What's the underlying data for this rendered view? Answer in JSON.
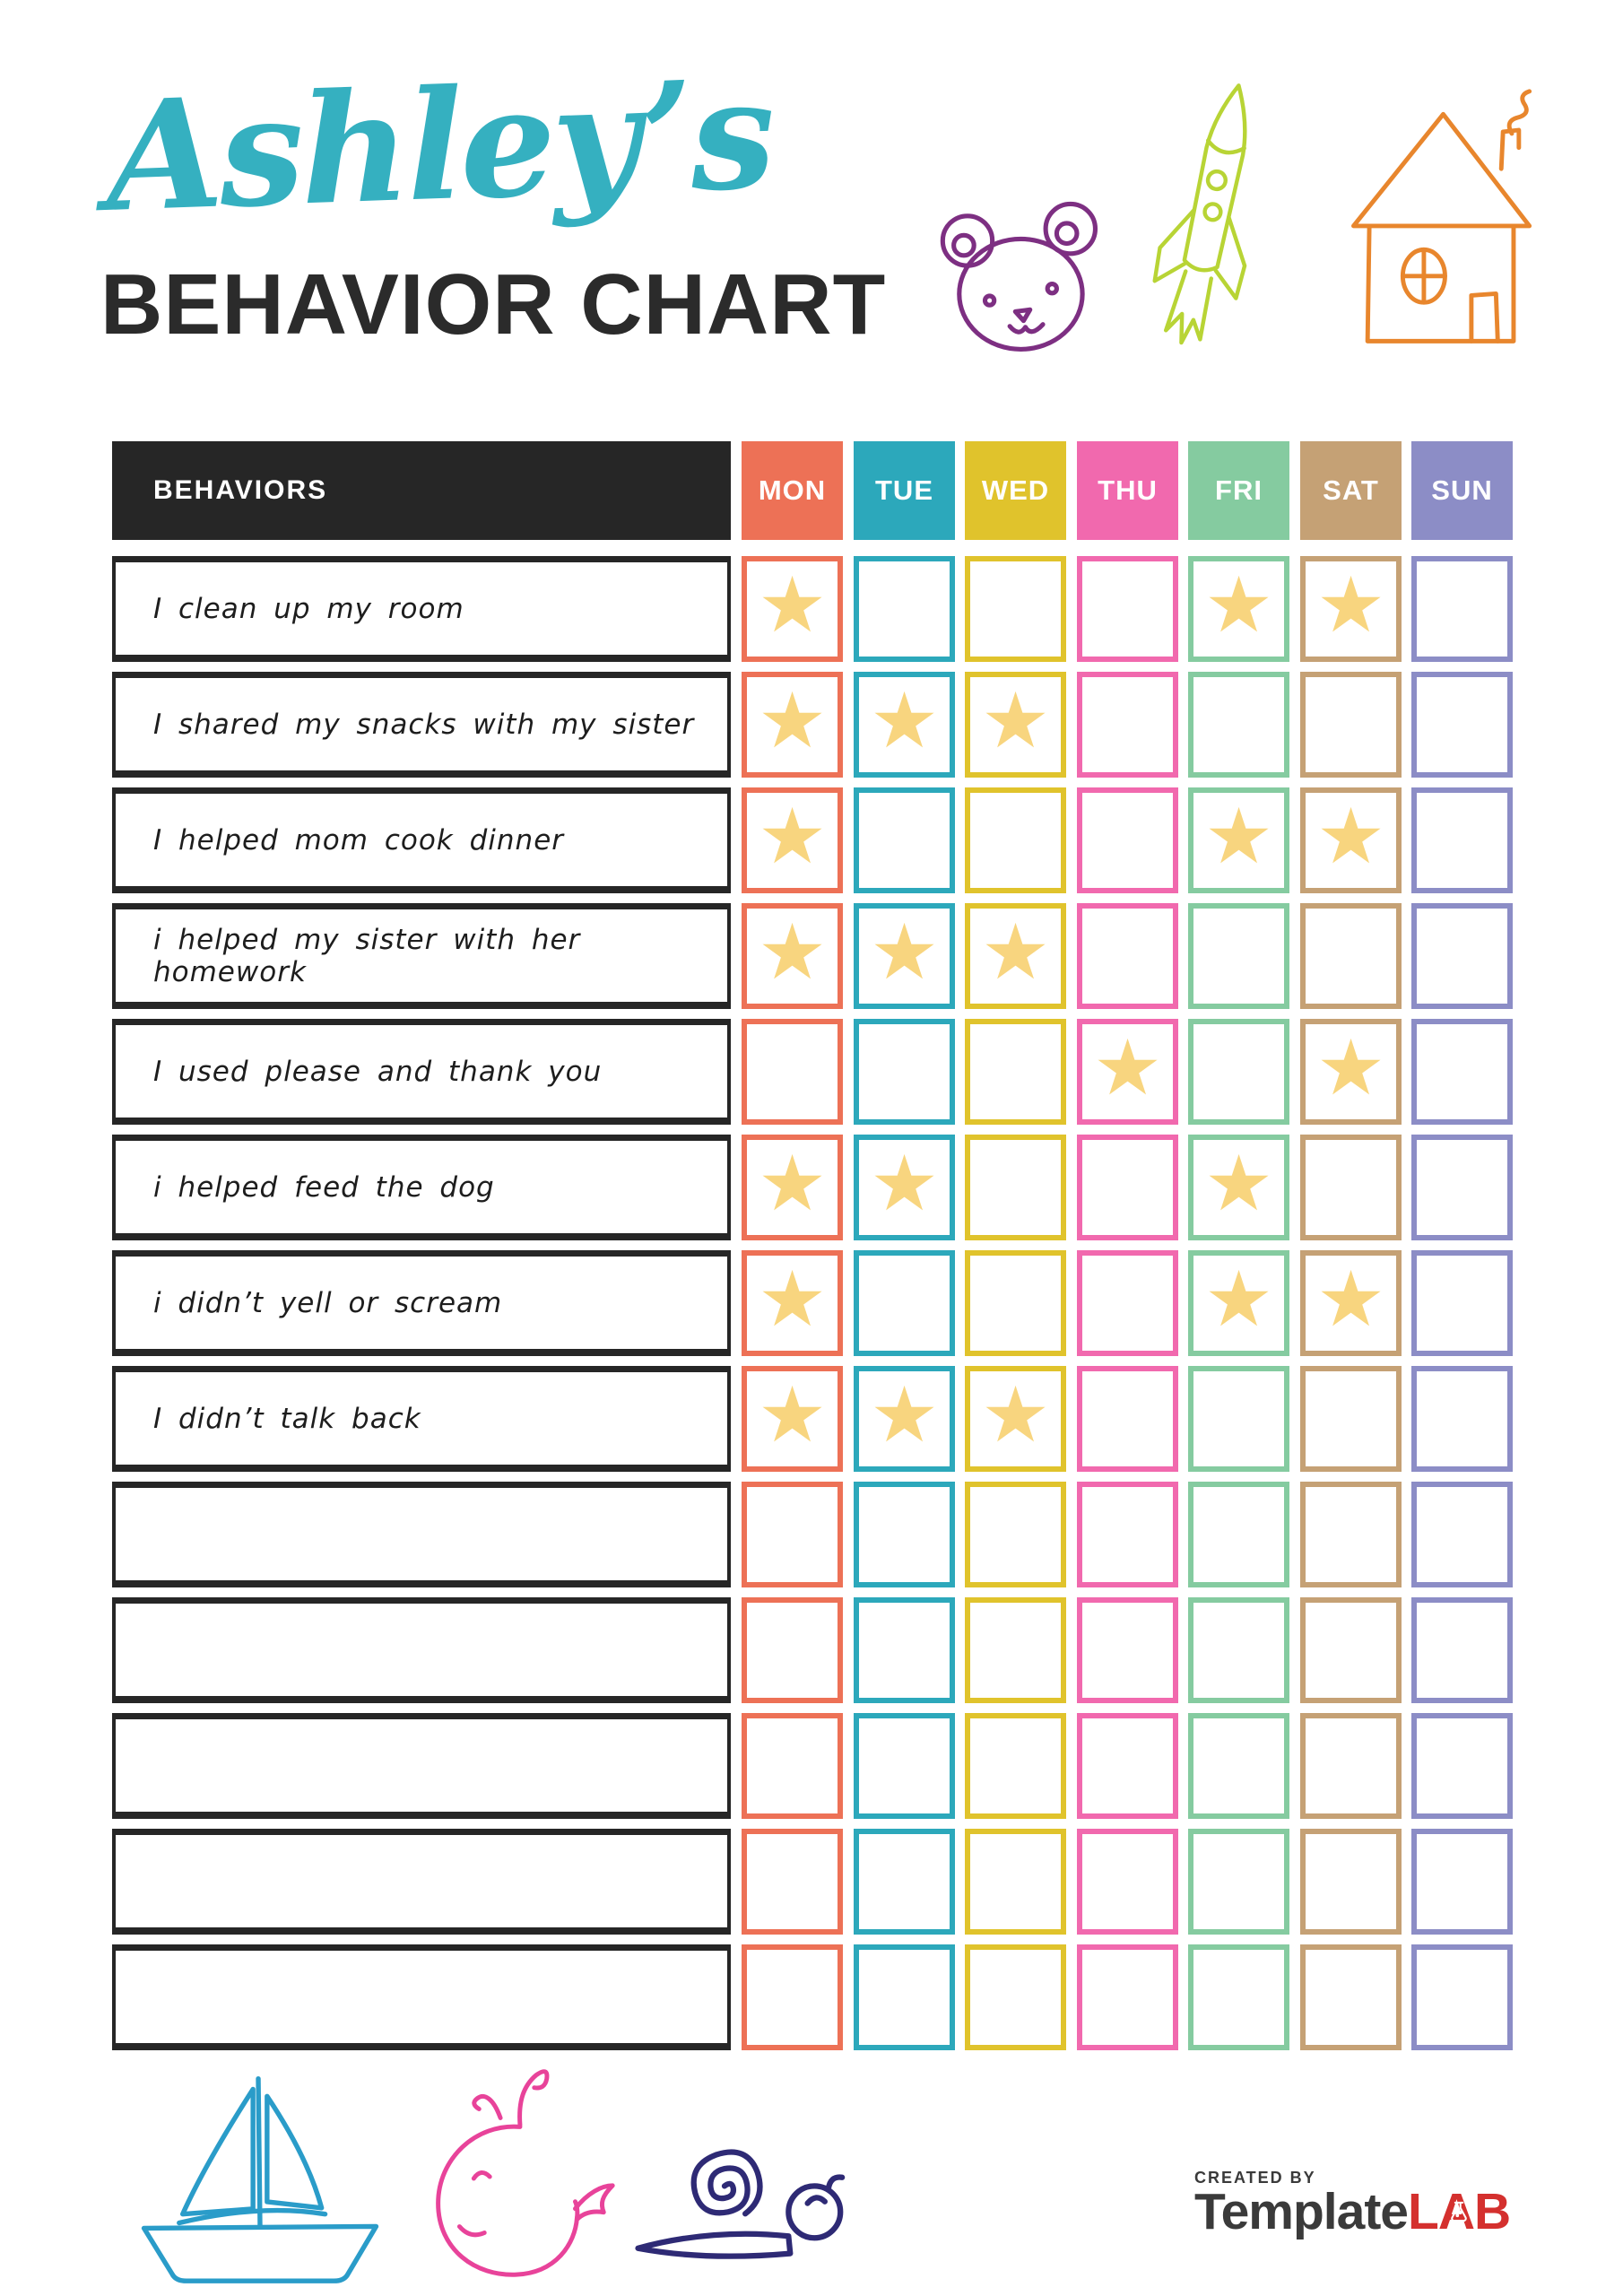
{
  "header": {
    "name_script": "Ashley’s",
    "title": "BEHAVIOR CHART"
  },
  "table": {
    "behaviors_label": "BEHAVIORS",
    "header_bg": "#262626",
    "star_glyph": "★",
    "star_color": "#f8d57f",
    "days": [
      {
        "label": "MON",
        "color": "#ed7156"
      },
      {
        "label": "TUE",
        "color": "#2ca8bb"
      },
      {
        "label": "WED",
        "color": "#e0c32c"
      },
      {
        "label": "THU",
        "color": "#f169ae"
      },
      {
        "label": "FRI",
        "color": "#85cba0"
      },
      {
        "label": "SAT",
        "color": "#c5a175"
      },
      {
        "label": "SUN",
        "color": "#8c8dc6"
      }
    ],
    "rows": [
      {
        "behavior": "I clean up my room",
        "stars": [
          1,
          0,
          0,
          0,
          1,
          1,
          0
        ]
      },
      {
        "behavior": "I shared my snacks with my sister",
        "stars": [
          1,
          1,
          1,
          0,
          0,
          0,
          0
        ]
      },
      {
        "behavior": "I helped mom cook dinner",
        "stars": [
          1,
          0,
          0,
          0,
          1,
          1,
          0
        ]
      },
      {
        "behavior": "i helped my sister with her homework",
        "stars": [
          1,
          1,
          1,
          0,
          0,
          0,
          0
        ]
      },
      {
        "behavior": "I used please and thank you",
        "stars": [
          0,
          0,
          0,
          1,
          0,
          1,
          0
        ]
      },
      {
        "behavior": "i helped feed the dog",
        "stars": [
          1,
          1,
          0,
          0,
          1,
          0,
          0
        ]
      },
      {
        "behavior": "i didn’t yell or scream",
        "stars": [
          1,
          0,
          0,
          0,
          1,
          1,
          0
        ]
      },
      {
        "behavior": "I didn’t talk back",
        "stars": [
          1,
          1,
          1,
          0,
          0,
          0,
          0
        ]
      },
      {
        "behavior": "",
        "stars": [
          0,
          0,
          0,
          0,
          0,
          0,
          0
        ]
      },
      {
        "behavior": "",
        "stars": [
          0,
          0,
          0,
          0,
          0,
          0,
          0
        ]
      },
      {
        "behavior": "",
        "stars": [
          0,
          0,
          0,
          0,
          0,
          0,
          0
        ]
      },
      {
        "behavior": "",
        "stars": [
          0,
          0,
          0,
          0,
          0,
          0,
          0
        ]
      },
      {
        "behavior": "",
        "stars": [
          0,
          0,
          0,
          0,
          0,
          0,
          0
        ]
      }
    ]
  },
  "decorations": {
    "top_icons": [
      "bear-icon",
      "rocket-icon",
      "house-icon"
    ],
    "bottom_icons": [
      "sailboat-icon",
      "whale-icon",
      "snail-icon"
    ],
    "colors": {
      "bear": "#7d2f82",
      "rocket": "#b8d435",
      "house": "#e8862d",
      "sailboat": "#2a9cc9",
      "whale": "#e8439a",
      "snail": "#2e2a75"
    }
  },
  "footer": {
    "created_by": "CREATED BY",
    "brand_gray": "Template",
    "brand_red": "LAB"
  },
  "colors": {
    "script_teal": "#35b0c0",
    "title_black": "#2b2b2b",
    "brand_gray": "#3a3a3a",
    "brand_red": "#d4302e"
  }
}
